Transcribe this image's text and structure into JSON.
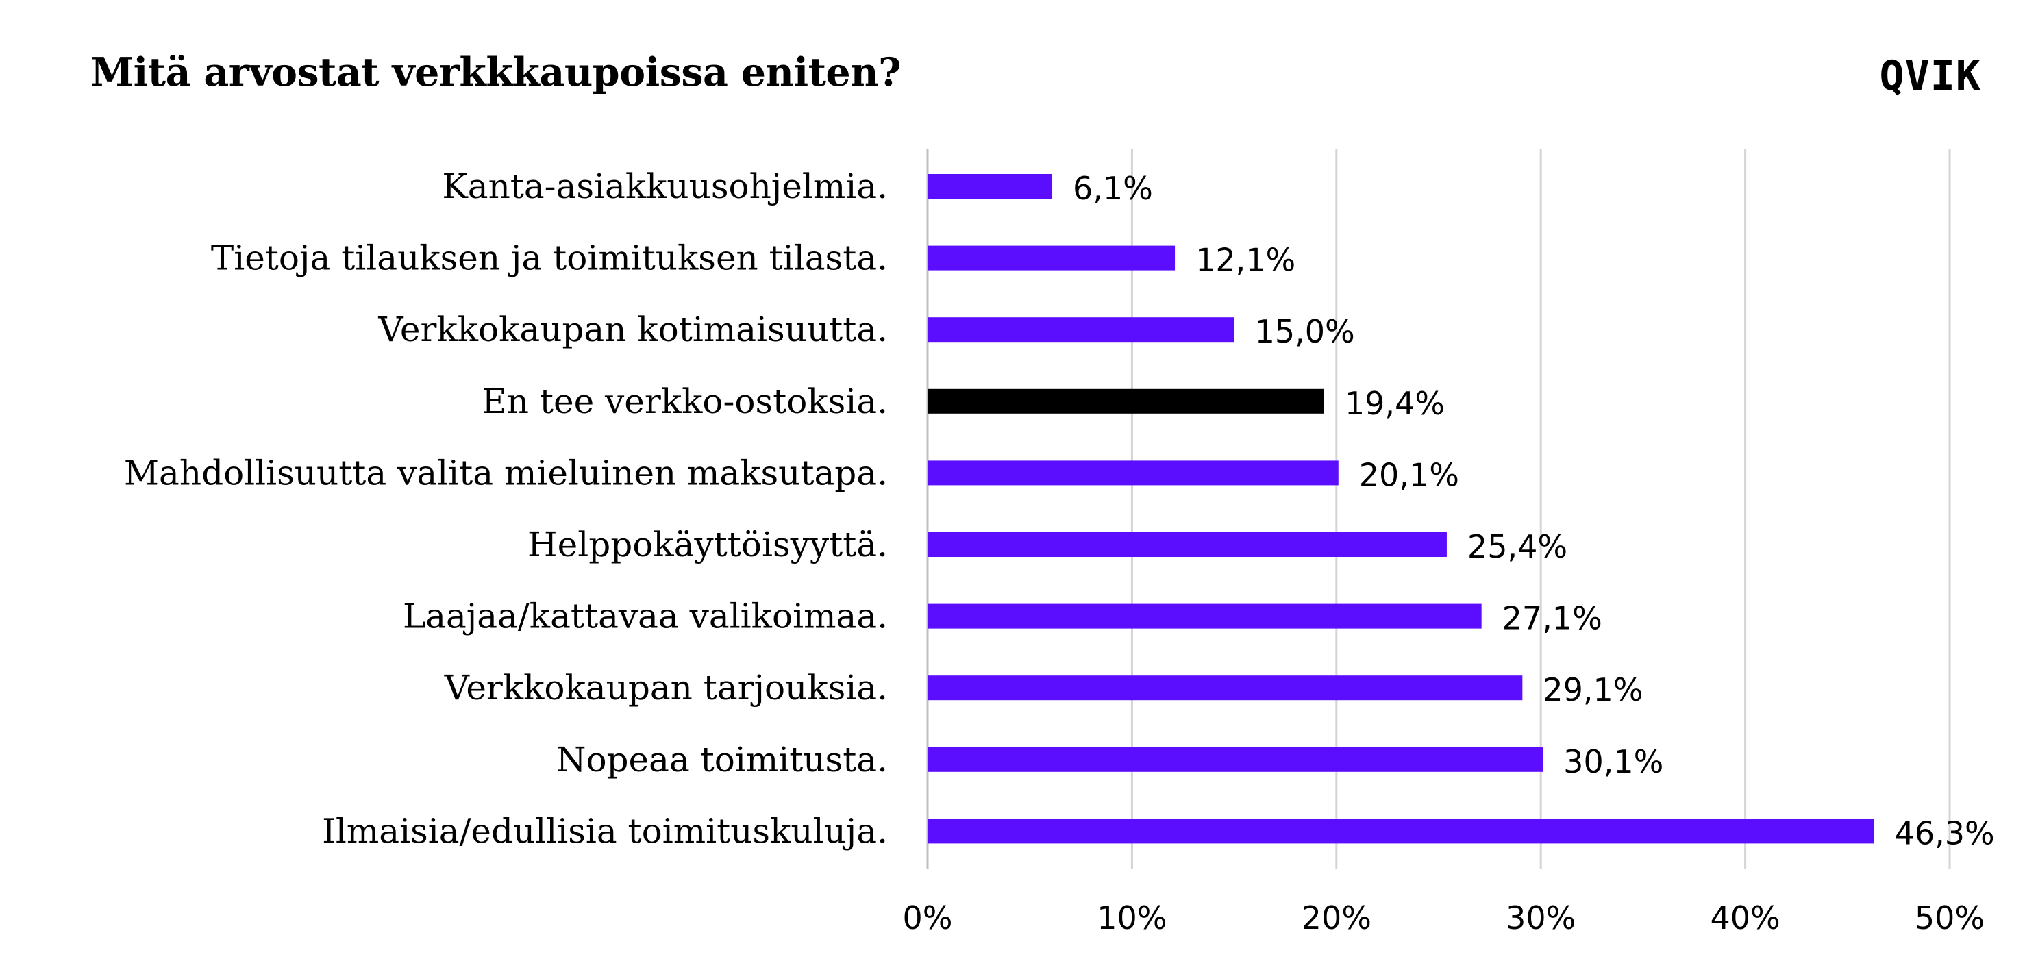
{
  "header": {
    "title": "Mitä arvostat verkkkaupoissa eniten?",
    "logo_text": "QVIK"
  },
  "colors": {
    "accent": "#5b0dfe",
    "highlight": "#000000",
    "grid": "#d4d4d4",
    "axis": "#bfbfbf"
  },
  "chart_data": {
    "type": "bar",
    "orientation": "horizontal",
    "title": "Mitä arvostat verkkkaupoissa eniten?",
    "categories": [
      "Kanta-asiakkuusohjelmia.",
      "Tietoja tilauksen ja toimituksen tilasta.",
      "Verkkokaupan kotimaisuutta.",
      "En tee verkko-ostoksia.",
      "Mahdollisuutta valita mieluinen maksutapa.",
      "Helppokäyttöisyyttä.",
      "Laajaa/kattavaa valikoimaa.",
      "Verkkokaupan tarjouksia.",
      "Nopeaa toimitusta.",
      "Ilmaisia/edullisia toimituskuluja."
    ],
    "values": [
      6.1,
      12.1,
      15.0,
      19.4,
      20.1,
      25.4,
      27.1,
      29.1,
      30.1,
      46.3
    ],
    "value_labels": [
      "6,1%",
      "12,1%",
      "15,0%",
      "19,4%",
      "20,1%",
      "25,4%",
      "27,1%",
      "29,1%",
      "30,1%",
      "46,3%"
    ],
    "highlighted_category": "En tee verkko-ostoksia.",
    "xlim": [
      0,
      50
    ],
    "xticks": [
      0,
      10,
      20,
      30,
      40,
      50
    ],
    "xtick_labels": [
      "0%",
      "10%",
      "20%",
      "30%",
      "40%",
      "50%"
    ],
    "grid": true,
    "legend": "none",
    "xlabel": "",
    "ylabel": ""
  }
}
